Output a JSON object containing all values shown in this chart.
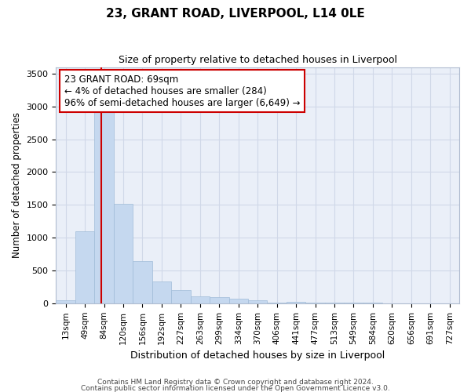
{
  "title": "23, GRANT ROAD, LIVERPOOL, L14 0LE",
  "subtitle": "Size of property relative to detached houses in Liverpool",
  "xlabel": "Distribution of detached houses by size in Liverpool",
  "ylabel": "Number of detached properties",
  "categories": [
    "13sqm",
    "49sqm",
    "84sqm",
    "120sqm",
    "156sqm",
    "192sqm",
    "227sqm",
    "263sqm",
    "299sqm",
    "334sqm",
    "370sqm",
    "406sqm",
    "441sqm",
    "477sqm",
    "513sqm",
    "549sqm",
    "584sqm",
    "620sqm",
    "656sqm",
    "691sqm",
    "727sqm"
  ],
  "values": [
    50,
    1100,
    2950,
    1510,
    645,
    335,
    200,
    100,
    90,
    65,
    50,
    15,
    25,
    5,
    5,
    5,
    5,
    3,
    2,
    2,
    2
  ],
  "bar_color": "#c5d8ef",
  "bar_edge_color": "#a0bcd8",
  "property_line_x": 1.85,
  "annotation_text": "23 GRANT ROAD: 69sqm\n← 4% of detached houses are smaller (284)\n96% of semi-detached houses are larger (6,649) →",
  "annotation_box_facecolor": "#ffffff",
  "annotation_box_edgecolor": "#cc0000",
  "vline_color": "#cc0000",
  "ylim": [
    0,
    3600
  ],
  "yticks": [
    0,
    500,
    1000,
    1500,
    2000,
    2500,
    3000,
    3500
  ],
  "grid_color": "#d0d8e8",
  "background_color": "#eaeff8",
  "title_fontsize": 11,
  "subtitle_fontsize": 9,
  "footer_line1": "Contains HM Land Registry data © Crown copyright and database right 2024.",
  "footer_line2": "Contains public sector information licensed under the Open Government Licence v3.0."
}
